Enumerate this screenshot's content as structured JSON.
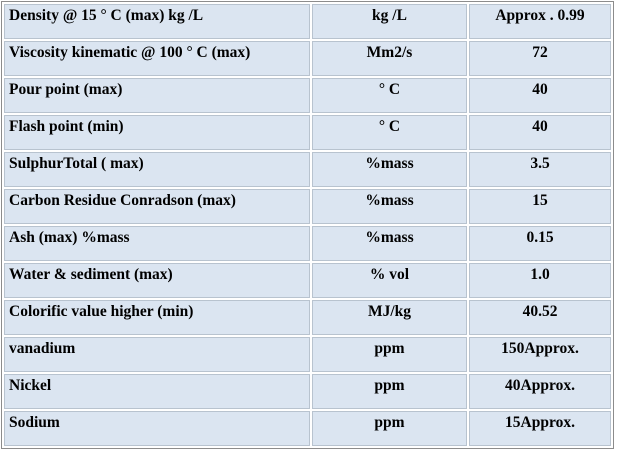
{
  "table": {
    "rows": [
      [
        "Density @ 15 ° C (max) kg /L",
        "kg /L",
        "Approx . 0.99"
      ],
      [
        "Viscosity kinematic @ 100 ° C (max)",
        "Mm2/s",
        "72"
      ],
      [
        "Pour point (max)",
        "° C",
        "40"
      ],
      [
        "Flash point (min)",
        "° C",
        "40"
      ],
      [
        "SulphurTotal ( max)",
        "%mass",
        "3.5"
      ],
      [
        "Carbon Residue Conradson (max)",
        "%mass",
        "15"
      ],
      [
        "Ash (max) %mass",
        "%mass",
        "0.15"
      ],
      [
        "Water & sediment (max)",
        "% vol",
        "1.0"
      ],
      [
        "Colorific value higher (min)",
        "MJ/kg",
        "40.52"
      ],
      [
        "vanadium",
        "ppm",
        "150Approx."
      ],
      [
        "Nickel",
        "ppm",
        "40Approx."
      ],
      [
        "Sodium",
        "ppm",
        "15Approx."
      ]
    ]
  }
}
